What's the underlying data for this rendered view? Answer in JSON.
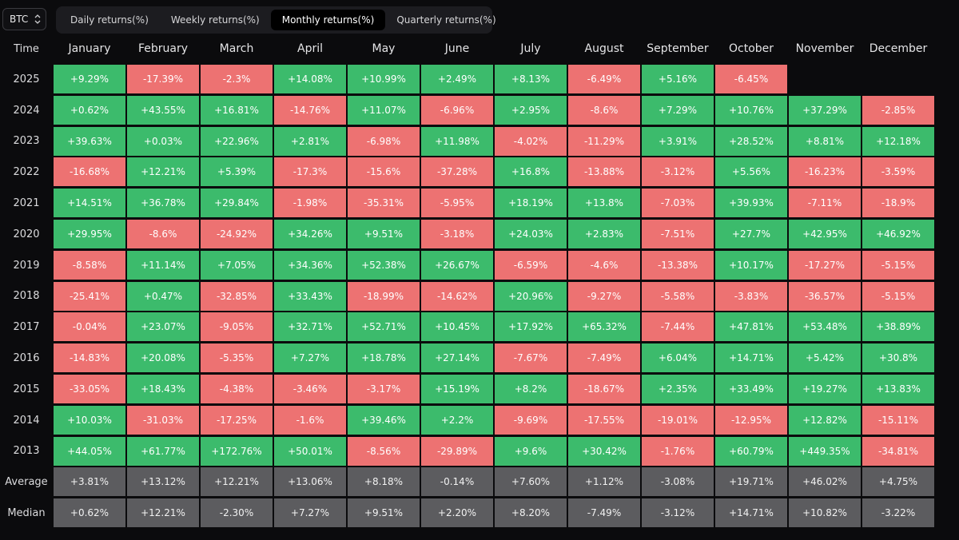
{
  "asset_select": {
    "value": "BTC"
  },
  "tabs": [
    {
      "label": "Daily returns(%)",
      "active": false
    },
    {
      "label": "Weekly returns(%)",
      "active": false
    },
    {
      "label": "Monthly returns(%)",
      "active": true
    },
    {
      "label": "Quarterly returns(%)",
      "active": false
    }
  ],
  "table": {
    "corner_label": "Time",
    "months": [
      "January",
      "February",
      "March",
      "April",
      "May",
      "June",
      "July",
      "August",
      "September",
      "October",
      "November",
      "December"
    ],
    "rows": [
      {
        "label": "2025",
        "values": [
          "+9.29%",
          "-17.39%",
          "-2.3%",
          "+14.08%",
          "+10.99%",
          "+2.49%",
          "+8.13%",
          "-6.49%",
          "+5.16%",
          "-6.45%",
          "",
          ""
        ]
      },
      {
        "label": "2024",
        "values": [
          "+0.62%",
          "+43.55%",
          "+16.81%",
          "-14.76%",
          "+11.07%",
          "-6.96%",
          "+2.95%",
          "-8.6%",
          "+7.29%",
          "+10.76%",
          "+37.29%",
          "-2.85%"
        ]
      },
      {
        "label": "2023",
        "values": [
          "+39.63%",
          "+0.03%",
          "+22.96%",
          "+2.81%",
          "-6.98%",
          "+11.98%",
          "-4.02%",
          "-11.29%",
          "+3.91%",
          "+28.52%",
          "+8.81%",
          "+12.18%"
        ]
      },
      {
        "label": "2022",
        "values": [
          "-16.68%",
          "+12.21%",
          "+5.39%",
          "-17.3%",
          "-15.6%",
          "-37.28%",
          "+16.8%",
          "-13.88%",
          "-3.12%",
          "+5.56%",
          "-16.23%",
          "-3.59%"
        ]
      },
      {
        "label": "2021",
        "values": [
          "+14.51%",
          "+36.78%",
          "+29.84%",
          "-1.98%",
          "-35.31%",
          "-5.95%",
          "+18.19%",
          "+13.8%",
          "-7.03%",
          "+39.93%",
          "-7.11%",
          "-18.9%"
        ]
      },
      {
        "label": "2020",
        "values": [
          "+29.95%",
          "-8.6%",
          "-24.92%",
          "+34.26%",
          "+9.51%",
          "-3.18%",
          "+24.03%",
          "+2.83%",
          "-7.51%",
          "+27.7%",
          "+42.95%",
          "+46.92%"
        ]
      },
      {
        "label": "2019",
        "values": [
          "-8.58%",
          "+11.14%",
          "+7.05%",
          "+34.36%",
          "+52.38%",
          "+26.67%",
          "-6.59%",
          "-4.6%",
          "-13.38%",
          "+10.17%",
          "-17.27%",
          "-5.15%"
        ]
      },
      {
        "label": "2018",
        "values": [
          "-25.41%",
          "+0.47%",
          "-32.85%",
          "+33.43%",
          "-18.99%",
          "-14.62%",
          "+20.96%",
          "-9.27%",
          "-5.58%",
          "-3.83%",
          "-36.57%",
          "-5.15%"
        ]
      },
      {
        "label": "2017",
        "values": [
          "-0.04%",
          "+23.07%",
          "-9.05%",
          "+32.71%",
          "+52.71%",
          "+10.45%",
          "+17.92%",
          "+65.32%",
          "-7.44%",
          "+47.81%",
          "+53.48%",
          "+38.89%"
        ]
      },
      {
        "label": "2016",
        "values": [
          "-14.83%",
          "+20.08%",
          "-5.35%",
          "+7.27%",
          "+18.78%",
          "+27.14%",
          "-7.67%",
          "-7.49%",
          "+6.04%",
          "+14.71%",
          "+5.42%",
          "+30.8%"
        ]
      },
      {
        "label": "2015",
        "values": [
          "-33.05%",
          "+18.43%",
          "-4.38%",
          "-3.46%",
          "-3.17%",
          "+15.19%",
          "+8.2%",
          "-18.67%",
          "+2.35%",
          "+33.49%",
          "+19.27%",
          "+13.83%"
        ]
      },
      {
        "label": "2014",
        "values": [
          "+10.03%",
          "-31.03%",
          "-17.25%",
          "-1.6%",
          "+39.46%",
          "+2.2%",
          "-9.69%",
          "-17.55%",
          "-19.01%",
          "-12.95%",
          "+12.82%",
          "-15.11%"
        ]
      },
      {
        "label": "2013",
        "values": [
          "+44.05%",
          "+61.77%",
          "+172.76%",
          "+50.01%",
          "-8.56%",
          "-29.89%",
          "+9.6%",
          "+30.42%",
          "-1.76%",
          "+60.79%",
          "+449.35%",
          "-34.81%"
        ]
      }
    ],
    "stats": [
      {
        "label": "Average",
        "values": [
          "+3.81%",
          "+13.12%",
          "+12.21%",
          "+13.06%",
          "+8.18%",
          "-0.14%",
          "+7.60%",
          "+1.12%",
          "-3.08%",
          "+19.71%",
          "+46.02%",
          "+4.75%"
        ]
      },
      {
        "label": "Median",
        "values": [
          "+0.62%",
          "+12.21%",
          "-2.30%",
          "+7.27%",
          "+9.51%",
          "+2.20%",
          "+8.20%",
          "-7.49%",
          "-3.12%",
          "+14.71%",
          "+10.82%",
          "-3.22%"
        ]
      }
    ]
  },
  "colors": {
    "positive": "#3cbb6c",
    "negative": "#ed7272",
    "stat": "#5c5c5f"
  }
}
